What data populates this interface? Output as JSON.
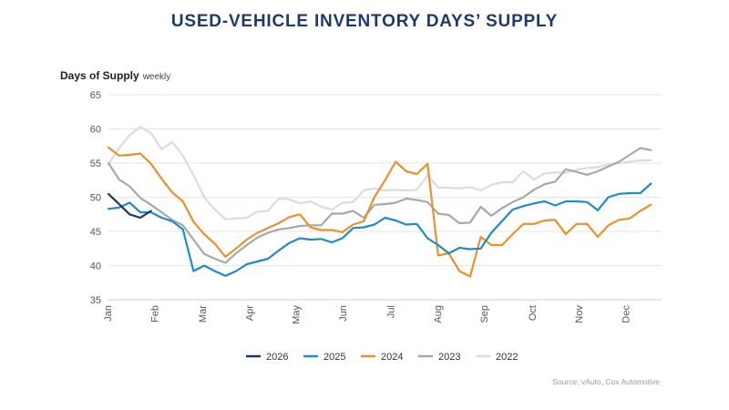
{
  "chart_data": {
    "type": "line",
    "title": "USED-VEHICLE INVENTORY DAYS’ SUPPLY",
    "ylabel": "Days of Supply",
    "ylabel_note": "weekly",
    "ylim": [
      35,
      65
    ],
    "yticks": [
      35,
      40,
      45,
      50,
      55,
      60,
      65
    ],
    "xlim": [
      0,
      52
    ],
    "x_tick_labels": [
      "Jan",
      "Feb",
      "Mar",
      "Apr",
      "May",
      "Jun",
      "Jul",
      "Aug",
      "Sep",
      "Oct",
      "Nov",
      "Dec"
    ],
    "x_tick_weeks": [
      0,
      4.4,
      8.9,
      13.3,
      17.7,
      22.1,
      26.6,
      31.0,
      35.4,
      39.9,
      44.3,
      48.7
    ],
    "grid": "horizontal",
    "legend_position": "bottom",
    "source": "Source: vAuto, Cox Automotive",
    "series": [
      {
        "name": "2026",
        "color": "#1c3867",
        "values": [
          50.5,
          49.0,
          47.5,
          47.0,
          48.0
        ]
      },
      {
        "name": "2025",
        "color": "#1f8bc9",
        "values": [
          48.3,
          48.5,
          49.2,
          47.8,
          47.8,
          47.0,
          46.5,
          45.3,
          39.2,
          40.0,
          39.2,
          38.5,
          39.2,
          40.2,
          40.6,
          41.0,
          42.2,
          43.3,
          44.0,
          43.8,
          43.9,
          43.4,
          44.0,
          45.5,
          45.6,
          46.0,
          47.0,
          46.6,
          46.0,
          46.1,
          44.0,
          43.0,
          41.8,
          42.6,
          42.4,
          42.5,
          44.8,
          46.5,
          48.2,
          48.7,
          49.1,
          49.4,
          48.8,
          49.4,
          49.4,
          49.3,
          48.1,
          50.0,
          50.5,
          50.6,
          50.6,
          52.0
        ]
      },
      {
        "name": "2024",
        "color": "#ee8f2e",
        "values": [
          57.3,
          56.1,
          56.2,
          56.4,
          54.9,
          52.7,
          50.7,
          49.4,
          46.4,
          44.6,
          43.2,
          41.3,
          42.5,
          43.8,
          44.8,
          45.5,
          46.2,
          47.1,
          47.5,
          45.6,
          45.2,
          45.2,
          44.9,
          46.0,
          46.5,
          50.0,
          52.5,
          55.2,
          53.8,
          53.4,
          54.9,
          41.5,
          41.8,
          39.2,
          38.4,
          44.2,
          43.0,
          43.0,
          44.6,
          46.1,
          46.1,
          46.6,
          46.7,
          44.6,
          46.1,
          46.1,
          44.2,
          45.9,
          46.7,
          46.9,
          48.0,
          48.9
        ]
      },
      {
        "name": "2023",
        "color": "#a8a8a8",
        "values": [
          55.0,
          52.6,
          51.6,
          49.9,
          48.9,
          47.8,
          46.7,
          45.9,
          43.8,
          41.7,
          41.0,
          40.4,
          41.8,
          43.0,
          44.1,
          44.8,
          45.3,
          45.5,
          45.8,
          45.9,
          45.9,
          47.6,
          47.6,
          48.0,
          47.0,
          48.9,
          49.0,
          49.2,
          49.8,
          49.6,
          49.3,
          47.6,
          47.4,
          46.2,
          46.3,
          48.6,
          47.3,
          48.4,
          49.3,
          50.0,
          51.1,
          51.9,
          52.3,
          54.1,
          53.7,
          53.3,
          53.8,
          54.5,
          55.2,
          56.2,
          57.2,
          56.9
        ]
      },
      {
        "name": "2022",
        "color": "#dcdcdc",
        "values": [
          54.8,
          57.2,
          59.1,
          60.3,
          59.4,
          57.0,
          58.1,
          56.1,
          53.2,
          50.0,
          48.2,
          46.8,
          46.9,
          47.0,
          47.9,
          48.0,
          49.8,
          49.7,
          49.1,
          49.4,
          48.6,
          48.2,
          49.2,
          49.3,
          51.0,
          51.3,
          51.0,
          51.1,
          51.0,
          51.1,
          53.2,
          51.4,
          51.4,
          51.3,
          51.5,
          51.0,
          51.8,
          52.2,
          52.2,
          53.8,
          52.6,
          53.5,
          53.6,
          53.6,
          54.0,
          54.3,
          54.4,
          54.8,
          55.0,
          55.2,
          55.4,
          55.4
        ]
      }
    ]
  }
}
